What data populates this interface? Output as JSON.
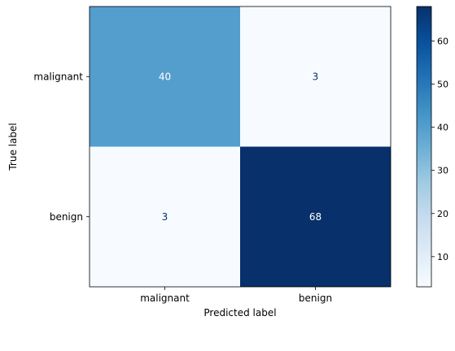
{
  "chart_data": {
    "type": "heatmap",
    "title": "",
    "xlabel": "Predicted label",
    "ylabel": "True label",
    "x_categories": [
      "malignant",
      "benign"
    ],
    "y_categories": [
      "malignant",
      "benign"
    ],
    "values": [
      [
        40,
        3
      ],
      [
        3,
        68
      ]
    ],
    "colormap": "Blues",
    "colorbar": {
      "range": [
        3,
        68
      ],
      "ticks": [
        10,
        20,
        30,
        40,
        50,
        60
      ],
      "tick_labels": [
        "10",
        "20",
        "30",
        "40",
        "50",
        "60"
      ]
    },
    "grid": false,
    "legend": "colorbar-right"
  }
}
